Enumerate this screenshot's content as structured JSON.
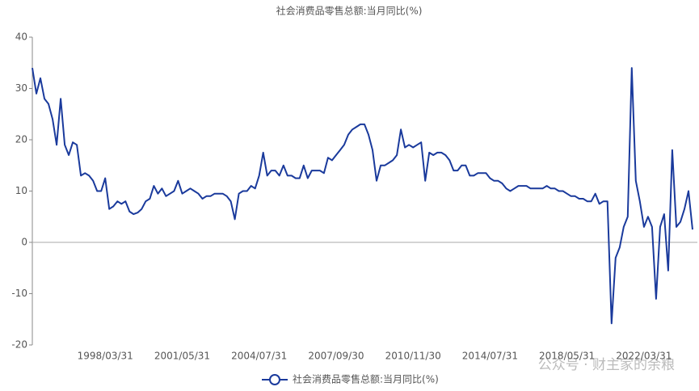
{
  "chart_data": {
    "type": "line",
    "title": "社会消费品零售总额:当月同比(%)",
    "categories": [
      null,
      null,
      null,
      null,
      null,
      null,
      null,
      null,
      null,
      null,
      null,
      null,
      null,
      null,
      null,
      null,
      null,
      null,
      "1998/03/31",
      null,
      null,
      null,
      null,
      null,
      null,
      null,
      null,
      null,
      null,
      null,
      null,
      null,
      null,
      null,
      null,
      null,
      null,
      "2001/05/31",
      null,
      null,
      null,
      null,
      null,
      null,
      null,
      null,
      null,
      null,
      null,
      null,
      null,
      null,
      null,
      null,
      null,
      null,
      "2004/07/31",
      null,
      null,
      null,
      null,
      null,
      null,
      null,
      null,
      null,
      null,
      null,
      null,
      null,
      null,
      null,
      null,
      null,
      null,
      "2007/09/30",
      null,
      null,
      null,
      null,
      null,
      null,
      null,
      null,
      null,
      null,
      null,
      null,
      null,
      null,
      null,
      null,
      null,
      null,
      "2010/11/30",
      null,
      null,
      null,
      null,
      null,
      null,
      null,
      null,
      null,
      null,
      null,
      null,
      null,
      null,
      null,
      null,
      null,
      null,
      "2014/07/31",
      null,
      null,
      null,
      null,
      null,
      null,
      null,
      null,
      null,
      null,
      null,
      null,
      null,
      null,
      null,
      null,
      null,
      null,
      "2018/05/31",
      null,
      null,
      null,
      null,
      null,
      null,
      null,
      null,
      null,
      null,
      null,
      null,
      null,
      null,
      null,
      null,
      null,
      null,
      "2022/03/31",
      null,
      null,
      null,
      null,
      null,
      null,
      null,
      null,
      null,
      null,
      null,
      null
    ],
    "series": [
      {
        "name": "社会消费品零售总额:当月同比(%)",
        "color": "#1a3a9c",
        "values": [
          34,
          29,
          32,
          28,
          27,
          24,
          19,
          28,
          19,
          17,
          19.5,
          19,
          13,
          13.5,
          13,
          12,
          10,
          10,
          12.5,
          6.5,
          7,
          8,
          7.5,
          8,
          6,
          5.5,
          5.8,
          6.5,
          8,
          8.5,
          11,
          9.5,
          10.5,
          9,
          9.5,
          10,
          12,
          9.5,
          10,
          10.5,
          10,
          9.5,
          8.5,
          9,
          9,
          9.5,
          9.5,
          9.5,
          9,
          8,
          4.5,
          9.5,
          10,
          10,
          11,
          10.5,
          13,
          17.5,
          13,
          14,
          14,
          13,
          15,
          13,
          13,
          12.5,
          12.5,
          15,
          12.5,
          14,
          14,
          14,
          13.5,
          16.5,
          16,
          17,
          18,
          19,
          21,
          22,
          22.5,
          23,
          23,
          21,
          18,
          12,
          15,
          15,
          15.5,
          16,
          17,
          22,
          18.5,
          19,
          18.5,
          19,
          19.5,
          12,
          17.5,
          17,
          17.5,
          17.5,
          17,
          16,
          14,
          14,
          15,
          15,
          13,
          13,
          13.5,
          13.5,
          13.5,
          12.5,
          12,
          12,
          11.5,
          10.5,
          10,
          10.5,
          11,
          11,
          11,
          10.5,
          10.5,
          10.5,
          10.5,
          11,
          10.5,
          10.5,
          10,
          10,
          9.5,
          9,
          9,
          8.5,
          8.5,
          8,
          8,
          9.5,
          7.5,
          8,
          8,
          -15.8,
          -3,
          -1,
          3,
          5,
          34,
          12,
          8,
          3,
          5,
          3,
          -11,
          3,
          5.5,
          -5.5,
          18,
          3,
          4,
          6.5,
          10,
          2.5
        ]
      }
    ],
    "ylim": [
      -20,
      40
    ],
    "yticks": [
      -20,
      -10,
      0,
      10,
      20,
      30,
      40
    ],
    "grid": false,
    "legend": "bottom",
    "watermark": "公众号 · 财主家的余粮"
  }
}
